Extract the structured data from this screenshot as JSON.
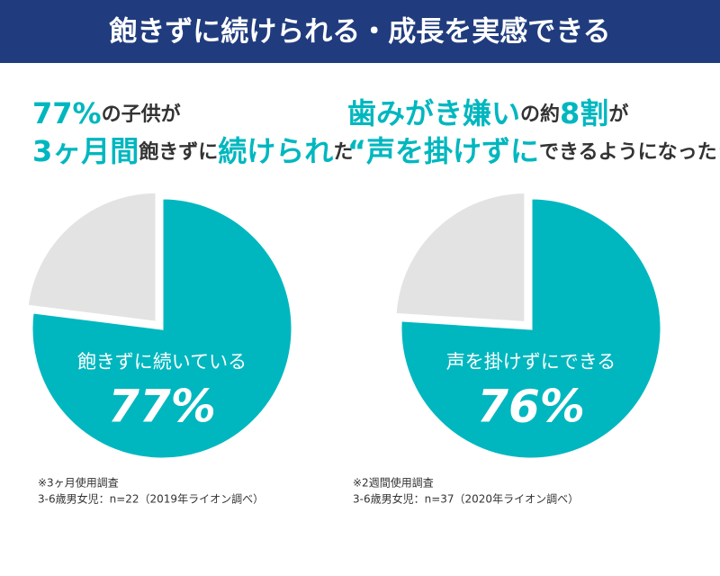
{
  "header": {
    "title": "飽きずに続けられる・成長を実感できる"
  },
  "chart_data": [
    {
      "type": "pie",
      "headline": [
        [
          {
            "text": "77%",
            "accent": true
          },
          {
            "text": "の子供が",
            "accent": false
          }
        ],
        [
          {
            "text": "3ヶ月間",
            "accent": true
          },
          {
            "text": "飽きずに",
            "accent": false
          },
          {
            "text": "続けられ",
            "accent": true
          },
          {
            "text": "た",
            "accent": false
          }
        ]
      ],
      "categories": [
        "飽きずに続いている",
        null
      ],
      "values": [
        77,
        23
      ],
      "value_labels": [
        "77%",
        null
      ],
      "colors": [
        "#00b7bf",
        "#e3e3e3"
      ],
      "notes": [
        "※3ヶ月使用調査",
        "3-6歳男女児：n=22（2019年ライオン調べ）"
      ]
    },
    {
      "type": "pie",
      "headline": [
        [
          {
            "text": "歯みがき嫌い",
            "accent": true
          },
          {
            "text": "の約",
            "accent": false
          },
          {
            "text": "8割",
            "accent": true
          },
          {
            "text": "が",
            "accent": false
          }
        ],
        [
          {
            "text": "“声を掛けずに",
            "accent": true
          },
          {
            "text": "できるようになった",
            "accent": false
          },
          {
            "text": "”",
            "accent": true
          }
        ]
      ],
      "categories": [
        "声を掛けずにできる",
        null
      ],
      "values": [
        76,
        24
      ],
      "value_labels": [
        "76%",
        null
      ],
      "colors": [
        "#00b7bf",
        "#e3e3e3"
      ],
      "notes": [
        "※2週間使用調査",
        "3-6歳男女児：n=37（2020年ライオン調べ）"
      ]
    }
  ]
}
